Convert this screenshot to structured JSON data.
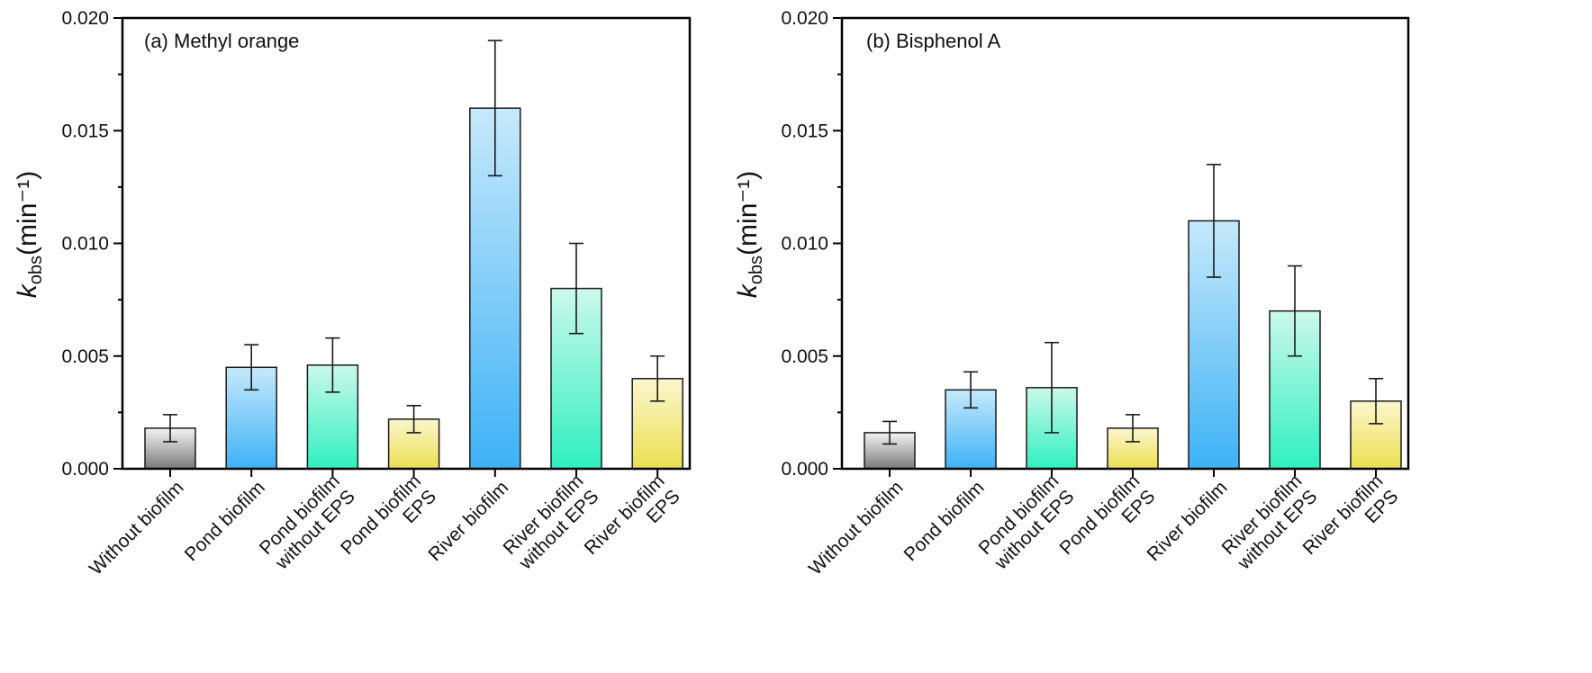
{
  "chart_data": [
    {
      "type": "bar",
      "title": "(a) Methyl orange",
      "ylabel": {
        "italic": "k",
        "sub": "obs",
        "rest": "(min⁻¹)"
      },
      "ylim": [
        0,
        0.02
      ],
      "yticks": [
        "0.000",
        "0.005",
        "0.010",
        "0.015",
        "0.020"
      ],
      "ytick_values": [
        0,
        0.005,
        0.01,
        0.015,
        0.02
      ],
      "categories": [
        [
          "Without biofilm"
        ],
        [
          "Pond biofilm"
        ],
        [
          "Pond biofilm",
          "without EPS"
        ],
        [
          "Pond biofilm",
          "EPS"
        ],
        [
          "River biofilm"
        ],
        [
          "River biofilm",
          "without EPS"
        ],
        [
          "River biofilm",
          "EPS"
        ]
      ],
      "values": [
        0.0018,
        0.0045,
        0.0046,
        0.0022,
        0.016,
        0.008,
        0.004
      ],
      "errors": [
        0.0006,
        0.001,
        0.0012,
        0.0006,
        0.003,
        0.002,
        0.001
      ],
      "colors": [
        "gray",
        "blue",
        "green",
        "yellow",
        "blue",
        "green",
        "yellow"
      ]
    },
    {
      "type": "bar",
      "title": "(b) Bisphenol A",
      "ylabel": {
        "italic": "k",
        "sub": "obs",
        "rest": "(min⁻¹)"
      },
      "ylim": [
        0,
        0.02
      ],
      "yticks": [
        "0.000",
        "0.005",
        "0.010",
        "0.015",
        "0.020"
      ],
      "ytick_values": [
        0,
        0.005,
        0.01,
        0.015,
        0.02
      ],
      "categories": [
        [
          "Without biofilm"
        ],
        [
          "Pond biofilm"
        ],
        [
          "Pond biofilm",
          "without EPS"
        ],
        [
          "Pond biofilm",
          "EPS"
        ],
        [
          "River biofilm"
        ],
        [
          "River biofilm",
          "without EPS"
        ],
        [
          "River biofilm",
          "EPS"
        ]
      ],
      "values": [
        0.0016,
        0.0035,
        0.0036,
        0.0018,
        0.011,
        0.007,
        0.003
      ],
      "errors": [
        0.0005,
        0.0008,
        0.002,
        0.0006,
        0.0025,
        0.002,
        0.001
      ],
      "colors": [
        "gray",
        "blue",
        "green",
        "yellow",
        "blue",
        "green",
        "yellow"
      ]
    }
  ],
  "palette": {
    "gray": [
      "#f4f4f4",
      "#7a7a7a"
    ],
    "blue": [
      "#c6e9fb",
      "#3db2f6"
    ],
    "green": [
      "#cbf8ea",
      "#2ff0bf"
    ],
    "yellow": [
      "#fbf6cf",
      "#ecdf4f"
    ],
    "axis": "#000000"
  }
}
